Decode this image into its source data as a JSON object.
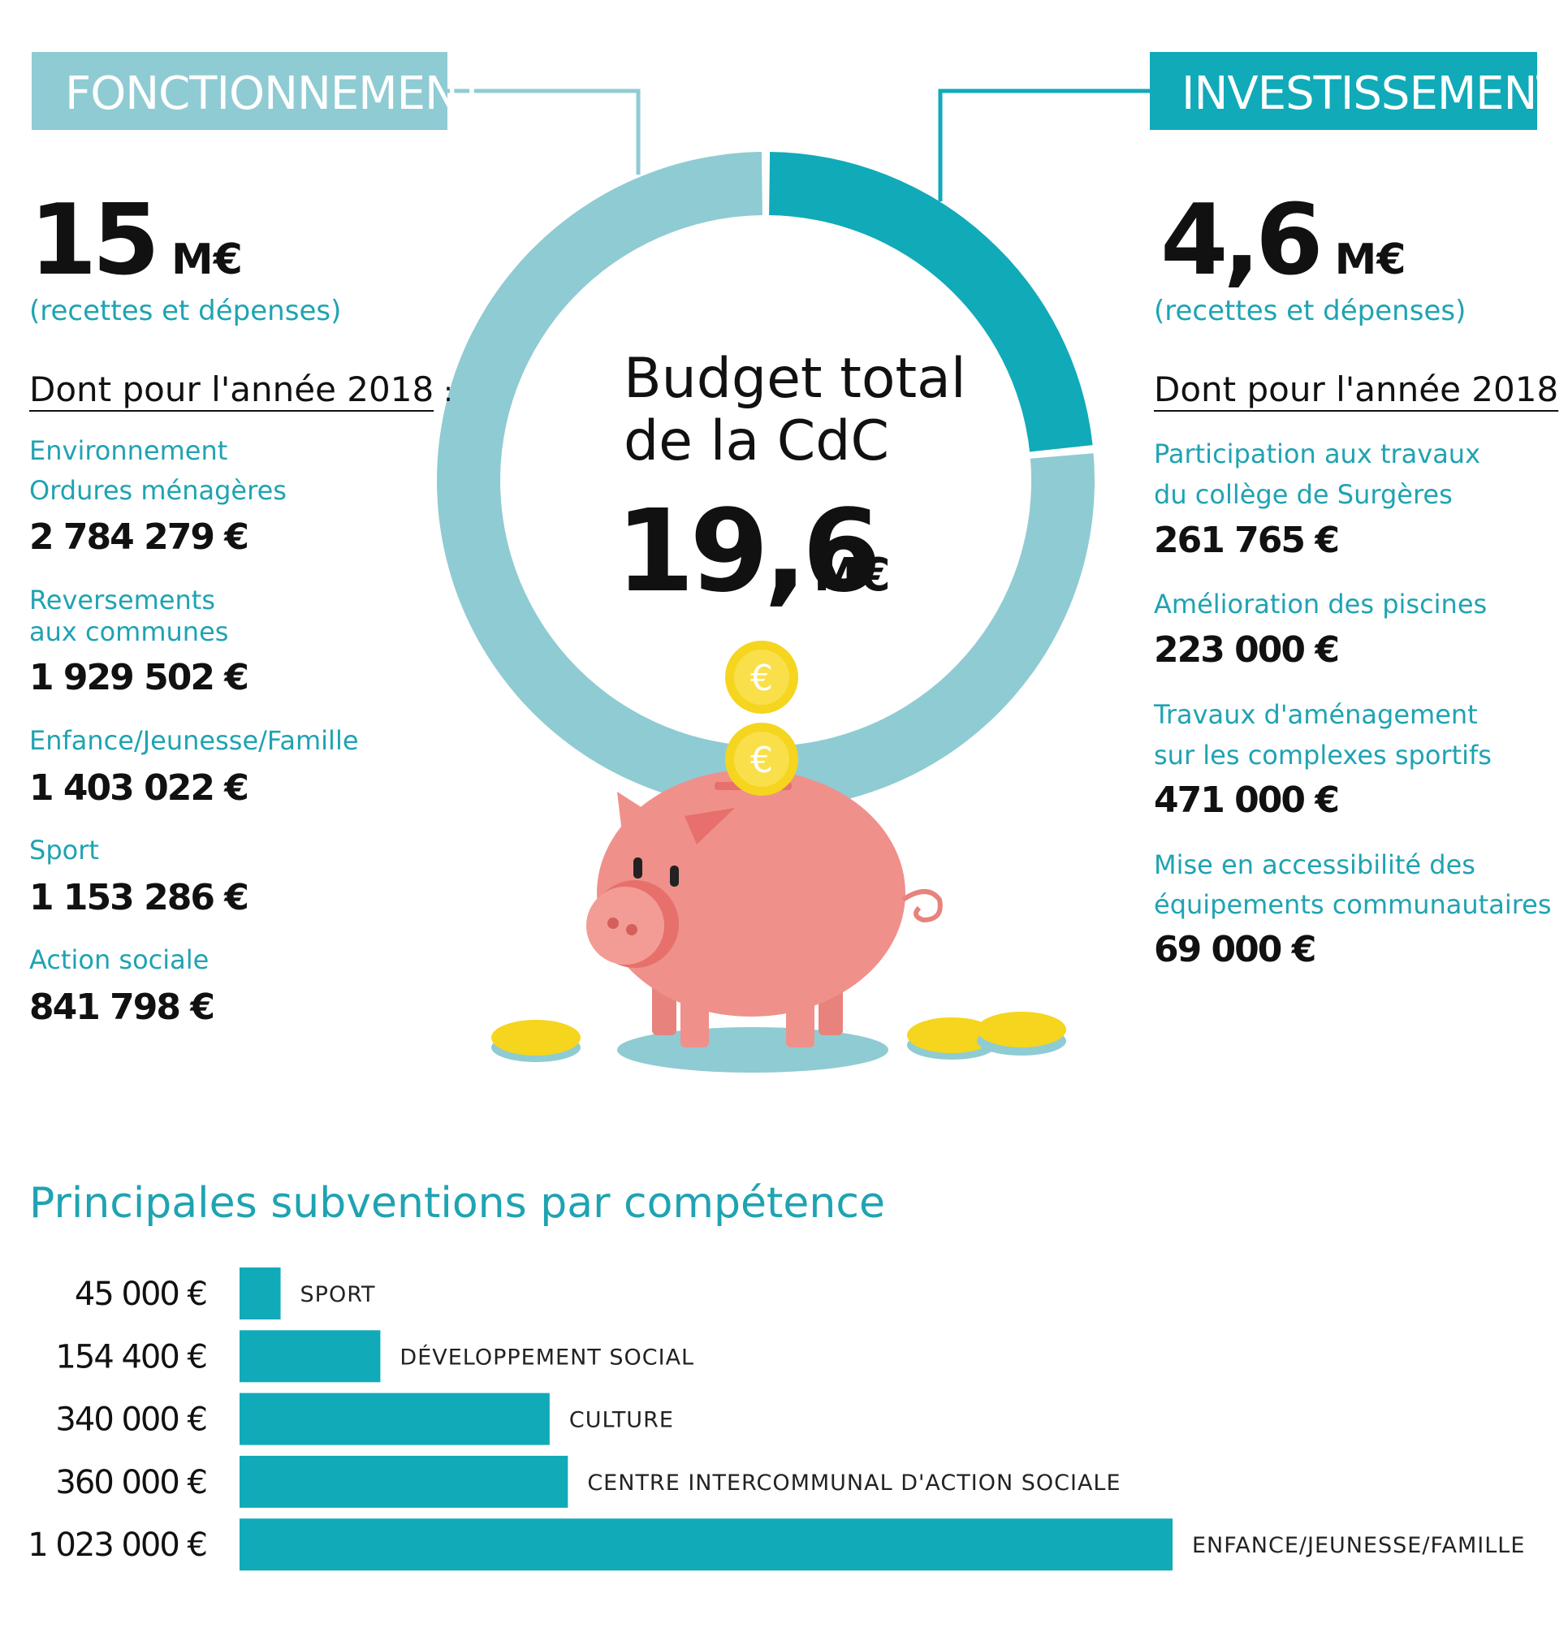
{
  "chart_data": [
    {
      "type": "pie",
      "donut": true,
      "title": [
        "Budget total",
        "de la CdC"
      ],
      "total_label": "19,6",
      "unit": "M€",
      "categories": [
        "FONCTIONNEMENT",
        "INVESTISSEMENT"
      ],
      "values": [
        15,
        4.6
      ],
      "value_labels": [
        "15",
        "4,6"
      ],
      "colors": [
        "#8fcbd3",
        "#11aab9"
      ]
    },
    {
      "type": "bar",
      "orientation": "horizontal",
      "title": "Principales subventions par compétence",
      "categories": [
        "SPORT",
        "DÉVELOPPEMENT SOCIAL",
        "CULTURE",
        "CENTRE INTERCOMMUNAL D'ACTION SOCIALE",
        "ENFANCE/JEUNESSE/FAMILLE"
      ],
      "values": [
        45000,
        154400,
        340000,
        360000,
        1023000
      ],
      "value_labels": [
        "45 000 €",
        "154 400 €",
        "340 000 €",
        "360 000 €",
        "1 023 000 €"
      ],
      "color": "#11aab9"
    }
  ],
  "details": [
    {
      "note": "(recettes et dépenses)",
      "subtitle": "Dont pour l'année 2018",
      "colon": ":",
      "items": [
        {
          "label": [
            "Environnement",
            "Ordures ménagères"
          ],
          "amount": "2 784 279 €"
        },
        {
          "label": [
            "Reversements",
            "aux communes"
          ],
          "amount": "1 929 502 €"
        },
        {
          "label": [
            "Enfance/Jeunesse/Famille"
          ],
          "amount": "1 403 022 €"
        },
        {
          "label": [
            "Sport"
          ],
          "amount": "1 153 286 €"
        },
        {
          "label": [
            "Action sociale"
          ],
          "amount": "841 798 €"
        }
      ]
    },
    {
      "note": "(recettes et dépenses)",
      "subtitle": "Dont pour l'année 2018",
      "colon": ":",
      "items": [
        {
          "label": [
            "Participation aux travaux",
            "du collège de Surgères"
          ],
          "amount": "261 765 €"
        },
        {
          "label": [
            "Amélioration des piscines"
          ],
          "amount": "223 000 €"
        },
        {
          "label": [
            "Travaux d'aménagement",
            "sur les complexes sportifs"
          ],
          "amount": "471 000 €"
        },
        {
          "label": [
            "Mise en accessibilité des",
            "équipements communautaires"
          ],
          "amount": "69 000 €"
        }
      ]
    }
  ]
}
